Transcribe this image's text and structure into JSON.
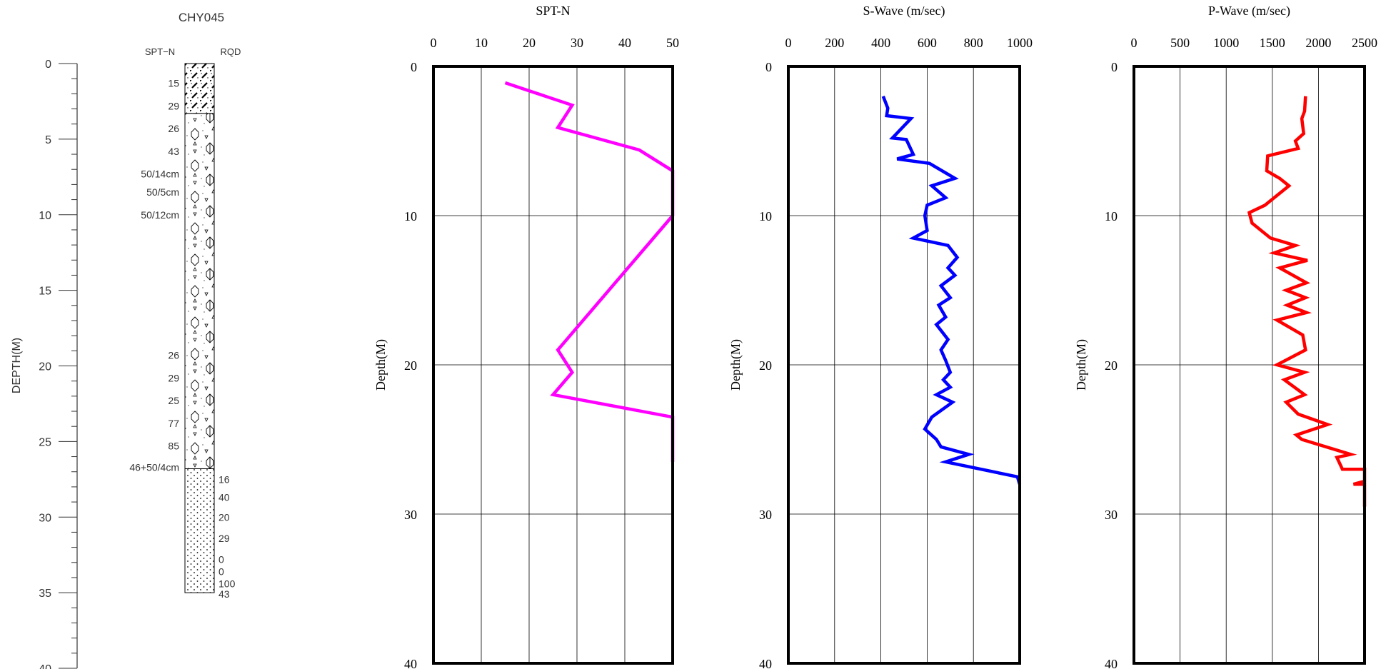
{
  "log": {
    "title": "CHY045",
    "col_spt": "SPT−N",
    "col_rqd": "RQD",
    "depth_label": "DEPTH(M)",
    "depth_ticks": [
      "0",
      "5",
      "10",
      "15",
      "20",
      "25",
      "30",
      "35",
      "40"
    ],
    "depth_range": [
      0,
      40
    ],
    "total_depth": 35,
    "layers": [
      {
        "from": 0,
        "to": 3.3,
        "pattern": "fill"
      },
      {
        "from": 3.3,
        "to": 26.8,
        "pattern": "gravel"
      },
      {
        "from": 26.8,
        "to": 35,
        "pattern": "sand"
      }
    ],
    "spt_labels": [
      {
        "depth": 1.3,
        "text": "15"
      },
      {
        "depth": 2.8,
        "text": "29"
      },
      {
        "depth": 4.3,
        "text": "26"
      },
      {
        "depth": 5.8,
        "text": "43"
      },
      {
        "depth": 7.3,
        "text": "50/14cm"
      },
      {
        "depth": 8.5,
        "text": "50/5cm"
      },
      {
        "depth": 10.0,
        "text": "50/12cm"
      },
      {
        "depth": 19.3,
        "text": "26"
      },
      {
        "depth": 20.8,
        "text": "29"
      },
      {
        "depth": 22.3,
        "text": "25"
      },
      {
        "depth": 23.8,
        "text": "77"
      },
      {
        "depth": 25.3,
        "text": "85"
      },
      {
        "depth": 26.7,
        "text": "46+50/4cm"
      }
    ],
    "rqd_labels": [
      {
        "depth": 27.5,
        "text": "16"
      },
      {
        "depth": 28.7,
        "text": "40"
      },
      {
        "depth": 30.0,
        "text": "20"
      },
      {
        "depth": 31.4,
        "text": "29"
      },
      {
        "depth": 32.8,
        "text": "0"
      },
      {
        "depth": 33.6,
        "text": "0"
      },
      {
        "depth": 34.4,
        "text": "100"
      },
      {
        "depth": 35.1,
        "text": "43"
      }
    ]
  },
  "chart_data": [
    {
      "type": "line",
      "title": "SPT-N",
      "ylabel": "Depth(M)",
      "xlim": [
        0,
        50
      ],
      "ylim": [
        0,
        40
      ],
      "x_ticks": [
        "0",
        "10",
        "20",
        "30",
        "40",
        "50"
      ],
      "y_ticks": [
        "0",
        "10",
        "20",
        "30",
        "40"
      ],
      "color": "#ff00ff",
      "series": [
        {
          "points": [
            [
              15,
              1.1
            ],
            [
              29,
              2.6
            ],
            [
              26,
              4.1
            ],
            [
              43,
              5.6
            ],
            [
              50,
              7.0
            ],
            [
              50,
              10.0
            ],
            [
              26,
              19.0
            ],
            [
              29,
              20.5
            ],
            [
              25,
              22.0
            ],
            [
              50,
              23.5
            ],
            [
              50,
              26.5
            ]
          ]
        }
      ]
    },
    {
      "type": "line",
      "title": "S-Wave (m/sec)",
      "ylabel": "Depth(M)",
      "xlim": [
        0,
        1000
      ],
      "ylim": [
        0,
        40
      ],
      "x_ticks": [
        "0",
        "200",
        "400",
        "600",
        "800",
        "1000"
      ],
      "y_ticks": [
        "0",
        "10",
        "20",
        "30",
        "40"
      ],
      "color": "#0000ff",
      "series": [
        {
          "points": [
            [
              410,
              2.0
            ],
            [
              430,
              2.8
            ],
            [
              425,
              3.3
            ],
            [
              530,
              3.5
            ],
            [
              450,
              4.8
            ],
            [
              510,
              4.9
            ],
            [
              540,
              5.9
            ],
            [
              470,
              6.2
            ],
            [
              610,
              6.5
            ],
            [
              720,
              7.5
            ],
            [
              620,
              8.0
            ],
            [
              680,
              8.8
            ],
            [
              600,
              9.3
            ],
            [
              590,
              10.0
            ],
            [
              600,
              11.0
            ],
            [
              540,
              11.5
            ],
            [
              690,
              12.0
            ],
            [
              730,
              12.8
            ],
            [
              690,
              13.5
            ],
            [
              720,
              14.0
            ],
            [
              660,
              14.7
            ],
            [
              700,
              15.5
            ],
            [
              650,
              16.0
            ],
            [
              680,
              16.8
            ],
            [
              640,
              17.3
            ],
            [
              690,
              18.3
            ],
            [
              660,
              19.0
            ],
            [
              680,
              19.7
            ],
            [
              700,
              20.5
            ],
            [
              670,
              21.0
            ],
            [
              700,
              21.5
            ],
            [
              640,
              22.0
            ],
            [
              710,
              22.5
            ],
            [
              620,
              23.5
            ],
            [
              590,
              24.3
            ],
            [
              640,
              25.0
            ],
            [
              660,
              25.5
            ],
            [
              780,
              26.0
            ],
            [
              680,
              26.5
            ],
            [
              990,
              27.5
            ],
            [
              1000,
              28.0
            ]
          ]
        }
      ]
    },
    {
      "type": "line",
      "title": "P-Wave (m/sec)",
      "ylabel": "Depth(M)",
      "xlim": [
        0,
        2500
      ],
      "ylim": [
        0,
        40
      ],
      "x_ticks": [
        "0",
        "500",
        "1000",
        "1500",
        "2000",
        "2500"
      ],
      "y_ticks": [
        "0",
        "10",
        "20",
        "30",
        "40"
      ],
      "color": "#ff0000",
      "series": [
        {
          "points": [
            [
              1860,
              2.0
            ],
            [
              1850,
              3.0
            ],
            [
              1820,
              3.5
            ],
            [
              1840,
              4.5
            ],
            [
              1750,
              5.0
            ],
            [
              1780,
              5.5
            ],
            [
              1450,
              6.0
            ],
            [
              1440,
              7.0
            ],
            [
              1580,
              7.5
            ],
            [
              1680,
              8.0
            ],
            [
              1420,
              9.3
            ],
            [
              1250,
              9.8
            ],
            [
              1280,
              10.5
            ],
            [
              1480,
              11.5
            ],
            [
              1750,
              12.0
            ],
            [
              1520,
              12.5
            ],
            [
              1880,
              13.0
            ],
            [
              1580,
              13.5
            ],
            [
              1870,
              14.5
            ],
            [
              1650,
              15.0
            ],
            [
              1860,
              15.5
            ],
            [
              1660,
              16.0
            ],
            [
              1870,
              16.5
            ],
            [
              1550,
              17.0
            ],
            [
              1830,
              18.0
            ],
            [
              1860,
              19.0
            ],
            [
              1550,
              20.0
            ],
            [
              1850,
              20.5
            ],
            [
              1630,
              21.0
            ],
            [
              1850,
              22.0
            ],
            [
              1650,
              22.5
            ],
            [
              1780,
              23.3
            ],
            [
              2100,
              24.0
            ],
            [
              1760,
              24.7
            ],
            [
              1820,
              25.0
            ],
            [
              2350,
              26.0
            ],
            [
              2200,
              26.2
            ],
            [
              2260,
              27.0
            ],
            [
              2500,
              27.0
            ],
            [
              2500,
              27.8
            ],
            [
              2380,
              28.0
            ],
            [
              2500,
              28.0
            ],
            [
              2500,
              29.5
            ]
          ]
        }
      ]
    }
  ]
}
